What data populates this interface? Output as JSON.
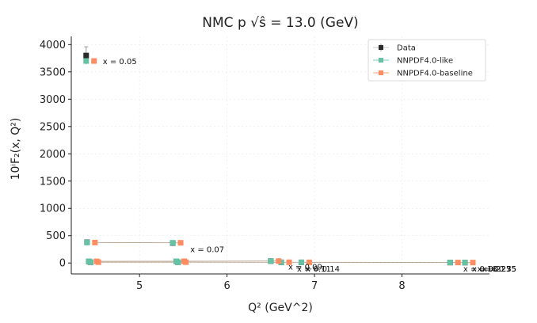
{
  "chart_data": {
    "type": "scatter",
    "title": "NMC p √ŝ = 13.0 (GeV)",
    "xlabel": "Q² (GeV^2)",
    "ylabel": "10ⁱF₂(x, Q²)",
    "xlim": [
      4.22,
      9.0
    ],
    "ylim": [
      -200,
      4150
    ],
    "xticks": [
      5,
      6,
      7,
      8
    ],
    "yticks": [
      0,
      500,
      1000,
      1500,
      2000,
      2500,
      3000,
      3500,
      4000
    ],
    "grid": true,
    "legend_position": "top-right",
    "legend": [
      "Data",
      "NNPDF4.0-like",
      "NNPDF4.0-baseline"
    ],
    "colors": {
      "data": "#2b2b2b",
      "like": "#66c2a5",
      "baseline": "#fc8d62",
      "line": "#b9a58f"
    },
    "series": [
      {
        "name": "Data",
        "points": [
          {
            "x": 4.39,
            "y": 3800,
            "err": 160
          },
          {
            "x": 4.4,
            "y": 380,
            "err": 20
          },
          {
            "x": 5.38,
            "y": 365,
            "err": 20
          },
          {
            "x": 4.42,
            "y": 28,
            "err": 6
          },
          {
            "x": 5.42,
            "y": 30,
            "err": 6
          },
          {
            "x": 6.5,
            "y": 35,
            "err": 6
          },
          {
            "x": 4.44,
            "y": 14,
            "err": 4
          },
          {
            "x": 5.44,
            "y": 14,
            "err": 4
          },
          {
            "x": 6.62,
            "y": 12,
            "err": 4
          },
          {
            "x": 6.85,
            "y": 11,
            "err": 4
          },
          {
            "x": 8.55,
            "y": 8,
            "err": 3
          },
          {
            "x": 8.72,
            "y": 7,
            "err": 3
          }
        ]
      },
      {
        "name": "NNPDF4.0-like",
        "points": [
          {
            "x": 4.39,
            "y": 3700
          },
          {
            "x": 4.4,
            "y": 375
          },
          {
            "x": 5.38,
            "y": 370
          },
          {
            "x": 4.42,
            "y": 30
          },
          {
            "x": 5.42,
            "y": 32
          },
          {
            "x": 6.5,
            "y": 36
          },
          {
            "x": 4.44,
            "y": 15
          },
          {
            "x": 5.44,
            "y": 15
          },
          {
            "x": 6.62,
            "y": 13
          },
          {
            "x": 6.85,
            "y": 12
          },
          {
            "x": 8.55,
            "y": 9
          },
          {
            "x": 8.72,
            "y": 8
          }
        ]
      },
      {
        "name": "NNPDF4.0-baseline",
        "points": [
          {
            "x": 4.48,
            "y": 3700
          },
          {
            "x": 4.49,
            "y": 375
          },
          {
            "x": 5.47,
            "y": 370
          },
          {
            "x": 4.51,
            "y": 30
          },
          {
            "x": 5.51,
            "y": 32
          },
          {
            "x": 6.59,
            "y": 36
          },
          {
            "x": 4.53,
            "y": 15
          },
          {
            "x": 5.53,
            "y": 15
          },
          {
            "x": 6.71,
            "y": 13
          },
          {
            "x": 6.94,
            "y": 12
          },
          {
            "x": 8.64,
            "y": 9
          },
          {
            "x": 8.81,
            "y": 8
          }
        ]
      }
    ],
    "annotations": [
      {
        "text": "x = 0.05",
        "x": 4.58,
        "y": 3640
      },
      {
        "text": "x = 0.07",
        "x": 5.58,
        "y": 200
      },
      {
        "text": "x = 0.09",
        "x": 6.7,
        "y": -120
      },
      {
        "text": "x = 0.11",
        "x": 6.8,
        "y": -160
      },
      {
        "text": "x = 0.14",
        "x": 6.9,
        "y": -160
      },
      {
        "text": "x = 0.18",
        "x": 8.7,
        "y": -160
      },
      {
        "text": "x = 0.225",
        "x": 8.8,
        "y": -160
      },
      {
        "text": "x = 0.275",
        "x": 8.86,
        "y": -160
      },
      {
        "text": "x = 0.35",
        "x": 8.92,
        "y": -160
      }
    ]
  }
}
